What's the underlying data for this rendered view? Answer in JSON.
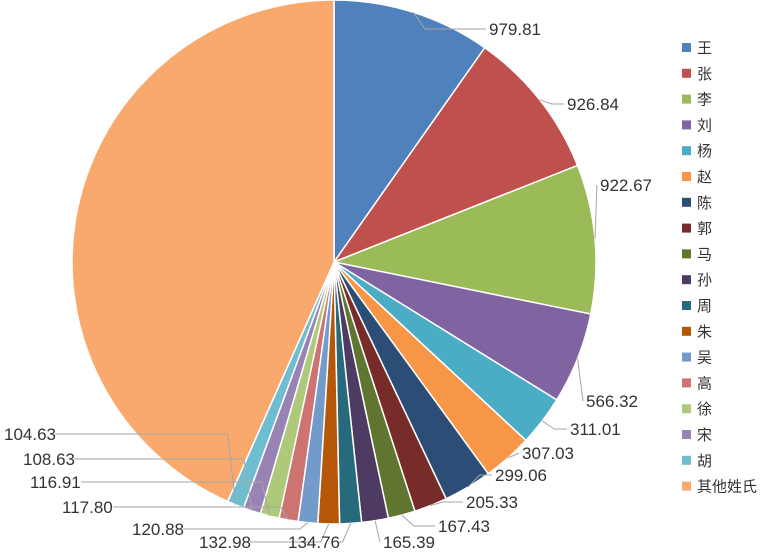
{
  "chart_data": {
    "type": "pie",
    "title": "",
    "legend_position": "right",
    "start_angle_deg": 0,
    "direction": "clockwise",
    "slices": [
      {
        "name": "王",
        "value": 979.81,
        "color": "#4f81bd"
      },
      {
        "name": "张",
        "value": 926.84,
        "color": "#c0504d"
      },
      {
        "name": "李",
        "value": 922.67,
        "color": "#9bbb59"
      },
      {
        "name": "刘",
        "value": 566.32,
        "color": "#8064a2"
      },
      {
        "name": "杨",
        "value": 311.01,
        "color": "#4bacc6"
      },
      {
        "name": "赵",
        "value": 307.03,
        "color": "#f79646"
      },
      {
        "name": "陈",
        "value": 299.06,
        "color": "#2c4d75"
      },
      {
        "name": "郭",
        "value": 205.33,
        "color": "#772c2a"
      },
      {
        "name": "马",
        "value": 167.43,
        "color": "#5f7530"
      },
      {
        "name": "孙",
        "value": 165.39,
        "color": "#4d3b62"
      },
      {
        "name": "周",
        "value": 134.76,
        "color": "#276a7c"
      },
      {
        "name": "朱",
        "value": 132.98,
        "color": "#b65708"
      },
      {
        "name": "吴",
        "value": 120.88,
        "color": "#729aca"
      },
      {
        "name": "高",
        "value": 117.8,
        "color": "#cd7371"
      },
      {
        "name": "徐",
        "value": 116.91,
        "color": "#afc97a"
      },
      {
        "name": "宋",
        "value": 108.63,
        "color": "#9983b5"
      },
      {
        "name": "胡",
        "value": 104.63,
        "color": "#6fbdd1"
      },
      {
        "name": "其他姓氏",
        "value": 4352.0,
        "color": "#f9a96e"
      }
    ],
    "labels": [
      "979.81",
      "926.84",
      "922.67",
      "566.32",
      "311.01",
      "307.03",
      "299.06",
      "205.33",
      "167.43",
      "165.39",
      "134.76",
      "132.98",
      "120.88",
      "117.80",
      "116.91",
      "108.63",
      "104.63",
      ""
    ]
  }
}
